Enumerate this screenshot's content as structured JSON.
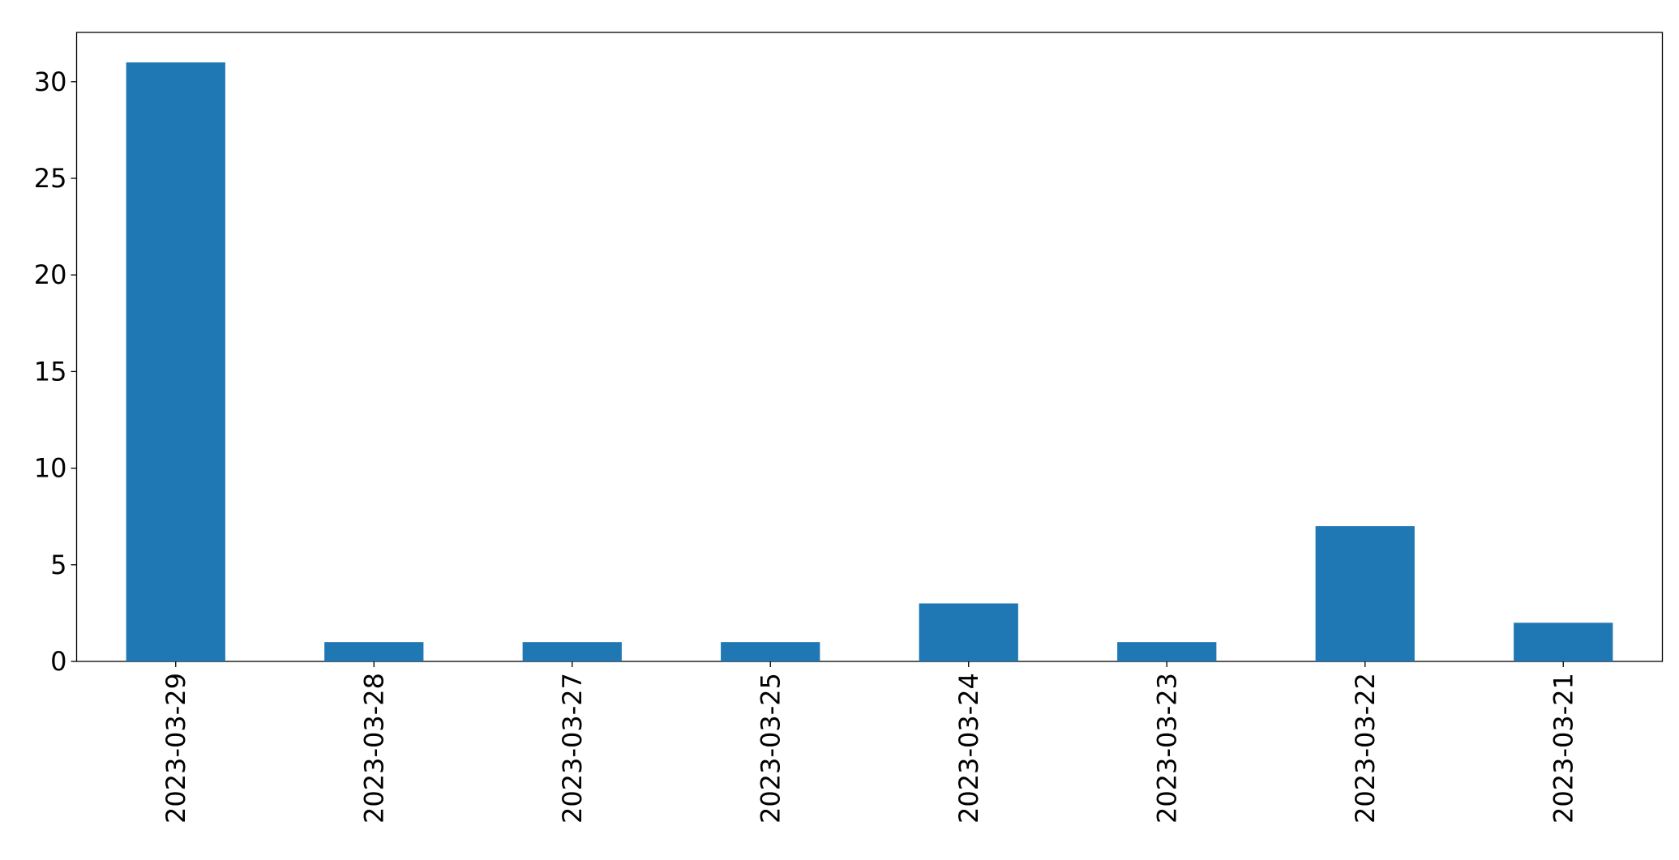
{
  "chart_data": {
    "type": "bar",
    "categories": [
      "2023-03-29",
      "2023-03-28",
      "2023-03-27",
      "2023-03-25",
      "2023-03-24",
      "2023-03-23",
      "2023-03-22",
      "2023-03-21"
    ],
    "values": [
      31,
      1,
      1,
      1,
      3,
      1,
      7,
      2
    ],
    "color": "#1f77b4",
    "ylim": [
      0,
      32.55
    ],
    "yticks": [
      0,
      5,
      10,
      15,
      20,
      25,
      30
    ],
    "grid": false
  }
}
